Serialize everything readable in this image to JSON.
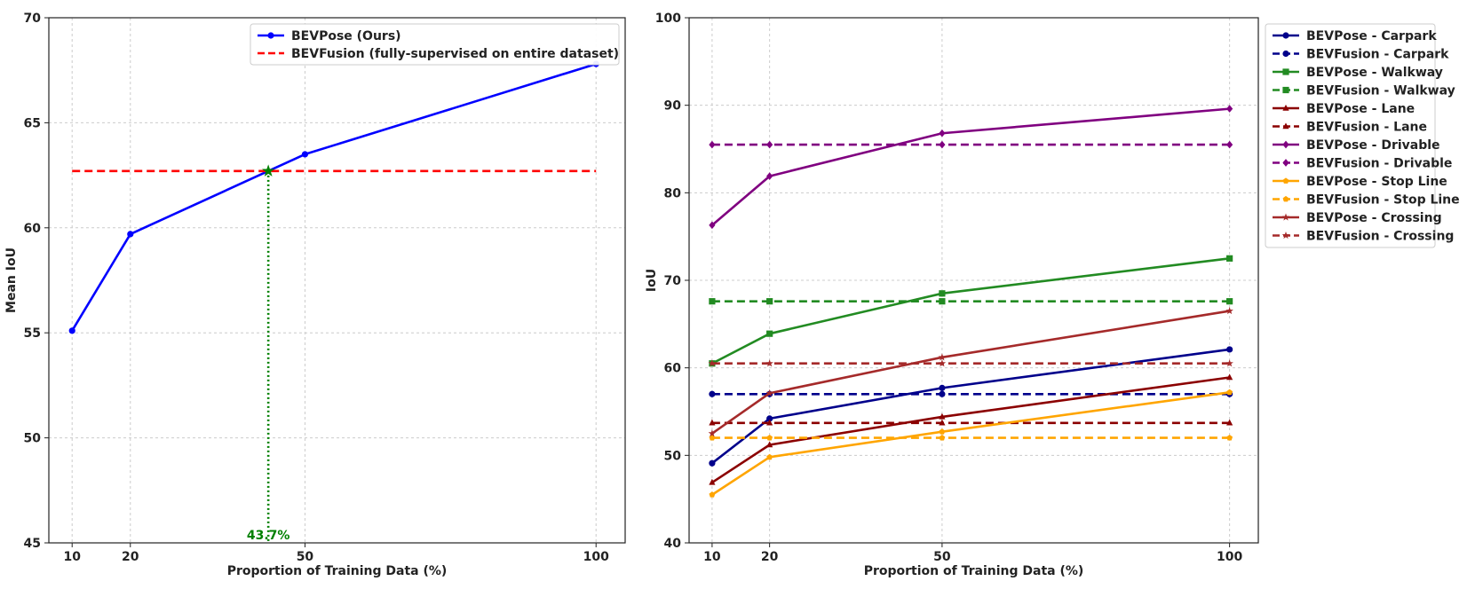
{
  "chart_data": [
    {
      "type": "line",
      "xlabel": "Proportion of Training Data (%)",
      "ylabel": "Mean IoU",
      "xticks": [
        10,
        20,
        50,
        100
      ],
      "yticks": [
        45,
        50,
        55,
        60,
        65,
        70
      ],
      "xlim": [
        6,
        105
      ],
      "ylim": [
        45,
        70
      ],
      "grid": true,
      "legend_position": "top-right",
      "series": [
        {
          "name": "BEVPose (Ours)",
          "color": "#0000ff",
          "style": "solid",
          "marker": "circle",
          "x": [
            10,
            20,
            50,
            100
          ],
          "y": [
            55.1,
            59.7,
            63.5,
            67.8
          ]
        },
        {
          "name": "BEVFusion (fully-supervised on entire dataset)",
          "color": "#ff0000",
          "style": "dashed",
          "marker": "none",
          "x": [
            10,
            100
          ],
          "y": [
            62.7,
            62.7
          ]
        }
      ],
      "annotations": [
        {
          "text": "43.7%",
          "x": 43.7,
          "y": 62.7,
          "color": "#008000",
          "marker": "star"
        }
      ]
    },
    {
      "type": "line",
      "xlabel": "Proportion of Training Data (%)",
      "ylabel": "IoU",
      "xticks": [
        10,
        20,
        50,
        100
      ],
      "yticks": [
        40,
        50,
        60,
        70,
        80,
        90,
        100
      ],
      "xlim": [
        6,
        105
      ],
      "ylim": [
        40,
        100
      ],
      "grid": true,
      "legend_position": "outside-right",
      "series": [
        {
          "name": "BEVPose - Carpark",
          "color": "#00008b",
          "style": "solid",
          "marker": "circle",
          "x": [
            10,
            20,
            50,
            100
          ],
          "y": [
            49.1,
            54.2,
            57.7,
            62.1
          ]
        },
        {
          "name": "BEVFusion - Carpark",
          "color": "#00008b",
          "style": "dashed",
          "marker": "circle",
          "x": [
            10,
            20,
            50,
            100
          ],
          "y": [
            57.0,
            57.0,
            57.0,
            57.0
          ]
        },
        {
          "name": "BEVPose - Walkway",
          "color": "#228b22",
          "style": "solid",
          "marker": "square",
          "x": [
            10,
            20,
            50,
            100
          ],
          "y": [
            60.5,
            63.9,
            68.5,
            72.5
          ]
        },
        {
          "name": "BEVFusion - Walkway",
          "color": "#228b22",
          "style": "dashed",
          "marker": "square",
          "x": [
            10,
            20,
            50,
            100
          ],
          "y": [
            67.6,
            67.6,
            67.6,
            67.6
          ]
        },
        {
          "name": "BEVPose - Lane",
          "color": "#8b0000",
          "style": "solid",
          "marker": "triangle",
          "x": [
            10,
            20,
            50,
            100
          ],
          "y": [
            46.9,
            51.2,
            54.4,
            58.9
          ]
        },
        {
          "name": "BEVFusion - Lane",
          "color": "#8b0000",
          "style": "dashed",
          "marker": "triangle",
          "x": [
            10,
            20,
            50,
            100
          ],
          "y": [
            53.7,
            53.7,
            53.7,
            53.7
          ]
        },
        {
          "name": "BEVPose - Drivable",
          "color": "#800080",
          "style": "solid",
          "marker": "diamond",
          "x": [
            10,
            20,
            50,
            100
          ],
          "y": [
            76.3,
            81.9,
            86.8,
            89.6
          ]
        },
        {
          "name": "BEVFusion - Drivable",
          "color": "#800080",
          "style": "dashed",
          "marker": "diamond",
          "x": [
            10,
            20,
            50,
            100
          ],
          "y": [
            85.5,
            85.5,
            85.5,
            85.5
          ]
        },
        {
          "name": "BEVPose - Stop Line",
          "color": "#ffa500",
          "style": "solid",
          "marker": "pentagon",
          "x": [
            10,
            20,
            50,
            100
          ],
          "y": [
            45.5,
            49.8,
            52.7,
            57.2
          ]
        },
        {
          "name": "BEVFusion - Stop Line",
          "color": "#ffa500",
          "style": "dashed",
          "marker": "pentagon",
          "x": [
            10,
            20,
            50,
            100
          ],
          "y": [
            52.0,
            52.0,
            52.0,
            52.0
          ]
        },
        {
          "name": "BEVPose - Crossing",
          "color": "#a52a2a",
          "style": "solid",
          "marker": "star",
          "x": [
            10,
            20,
            50,
            100
          ],
          "y": [
            52.5,
            57.1,
            61.2,
            66.5
          ]
        },
        {
          "name": "BEVFusion - Crossing",
          "color": "#a52a2a",
          "style": "dashed",
          "marker": "star",
          "x": [
            10,
            20,
            50,
            100
          ],
          "y": [
            60.5,
            60.5,
            60.5,
            60.5
          ]
        }
      ]
    }
  ]
}
